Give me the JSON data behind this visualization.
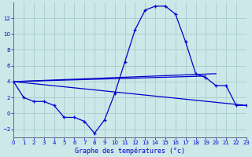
{
  "xlabel": "Graphe des températures (°c)",
  "background_color": "#cce8e8",
  "grid_color": "#aacccc",
  "line_color": "#0000cc",
  "xlim": [
    0,
    23
  ],
  "ylim": [
    -3,
    14
  ],
  "xticks": [
    0,
    1,
    2,
    3,
    4,
    5,
    6,
    7,
    8,
    9,
    10,
    11,
    12,
    13,
    14,
    15,
    16,
    17,
    18,
    19,
    20,
    21,
    22,
    23
  ],
  "yticks": [
    -2,
    0,
    2,
    4,
    6,
    8,
    10,
    12
  ],
  "series1_x": [
    0,
    1,
    2,
    3,
    4,
    5,
    6,
    7,
    8,
    9,
    10,
    11,
    12,
    13,
    14,
    15,
    16,
    17,
    18,
    19,
    20,
    21,
    22,
    23
  ],
  "series1_y": [
    4,
    2,
    1.5,
    1.5,
    1,
    -0.5,
    -0.5,
    -1,
    -2.5,
    -0.8,
    2.5,
    6.5,
    10.5,
    13,
    13.5,
    13.5,
    12.5,
    9,
    5.0,
    4.5,
    3.5,
    3.5,
    1,
    1
  ],
  "line1": {
    "x": [
      0,
      20
    ],
    "y": [
      4,
      5.0
    ]
  },
  "line2": {
    "x": [
      0,
      19
    ],
    "y": [
      4,
      4.7
    ]
  },
  "line3": {
    "x": [
      0,
      23
    ],
    "y": [
      4,
      1.0
    ]
  }
}
